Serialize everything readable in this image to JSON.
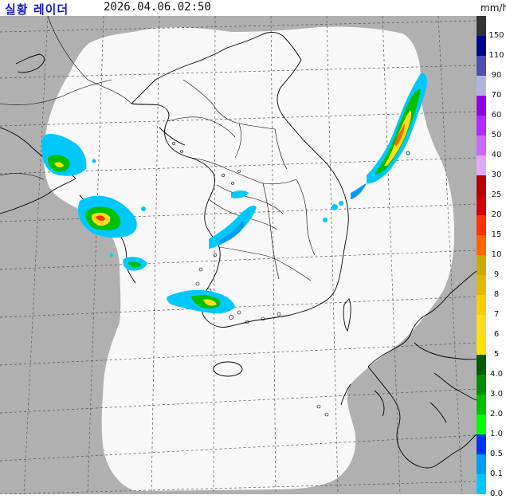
{
  "header": {
    "title": "실황 레이더",
    "timestamp": "2026.04.06.02:50",
    "unit": "mm/h"
  },
  "colors": {
    "outside": "#b0b0b0",
    "coverage": "#f8f8f8",
    "coast": "#000000",
    "grid": "#555555"
  },
  "legend": [
    {
      "label": "150",
      "color": "#333333"
    },
    {
      "label": "110",
      "color": "#000390"
    },
    {
      "label": "90",
      "color": "#4c4eb1"
    },
    {
      "label": "70",
      "color": "#b3b4de"
    },
    {
      "label": "60",
      "color": "#9300e4"
    },
    {
      "label": "50",
      "color": "#b329ff"
    },
    {
      "label": "40",
      "color": "#c969ff"
    },
    {
      "label": "30",
      "color": "#e0a9ff"
    },
    {
      "label": "25",
      "color": "#b40000"
    },
    {
      "label": "20",
      "color": "#d20000"
    },
    {
      "label": "15",
      "color": "#ff3200"
    },
    {
      "label": "10",
      "color": "#ff6600"
    },
    {
      "label": "9",
      "color": "#ccaa00"
    },
    {
      "label": "8",
      "color": "#e0b900"
    },
    {
      "label": "7",
      "color": "#f9cd00"
    },
    {
      "label": "6",
      "color": "#ffdc1f"
    },
    {
      "label": "5",
      "color": "#ffe100"
    },
    {
      "label": "4.0",
      "color": "#005a00"
    },
    {
      "label": "3.0",
      "color": "#008c00"
    },
    {
      "label": "2.0",
      "color": "#00be00"
    },
    {
      "label": "1.0",
      "color": "#00ff00"
    },
    {
      "label": "0.5",
      "color": "#0033f5"
    },
    {
      "label": "0.1",
      "color": "#009bf5"
    },
    {
      "label": "0.0",
      "color": "#00c8ff"
    }
  ]
}
